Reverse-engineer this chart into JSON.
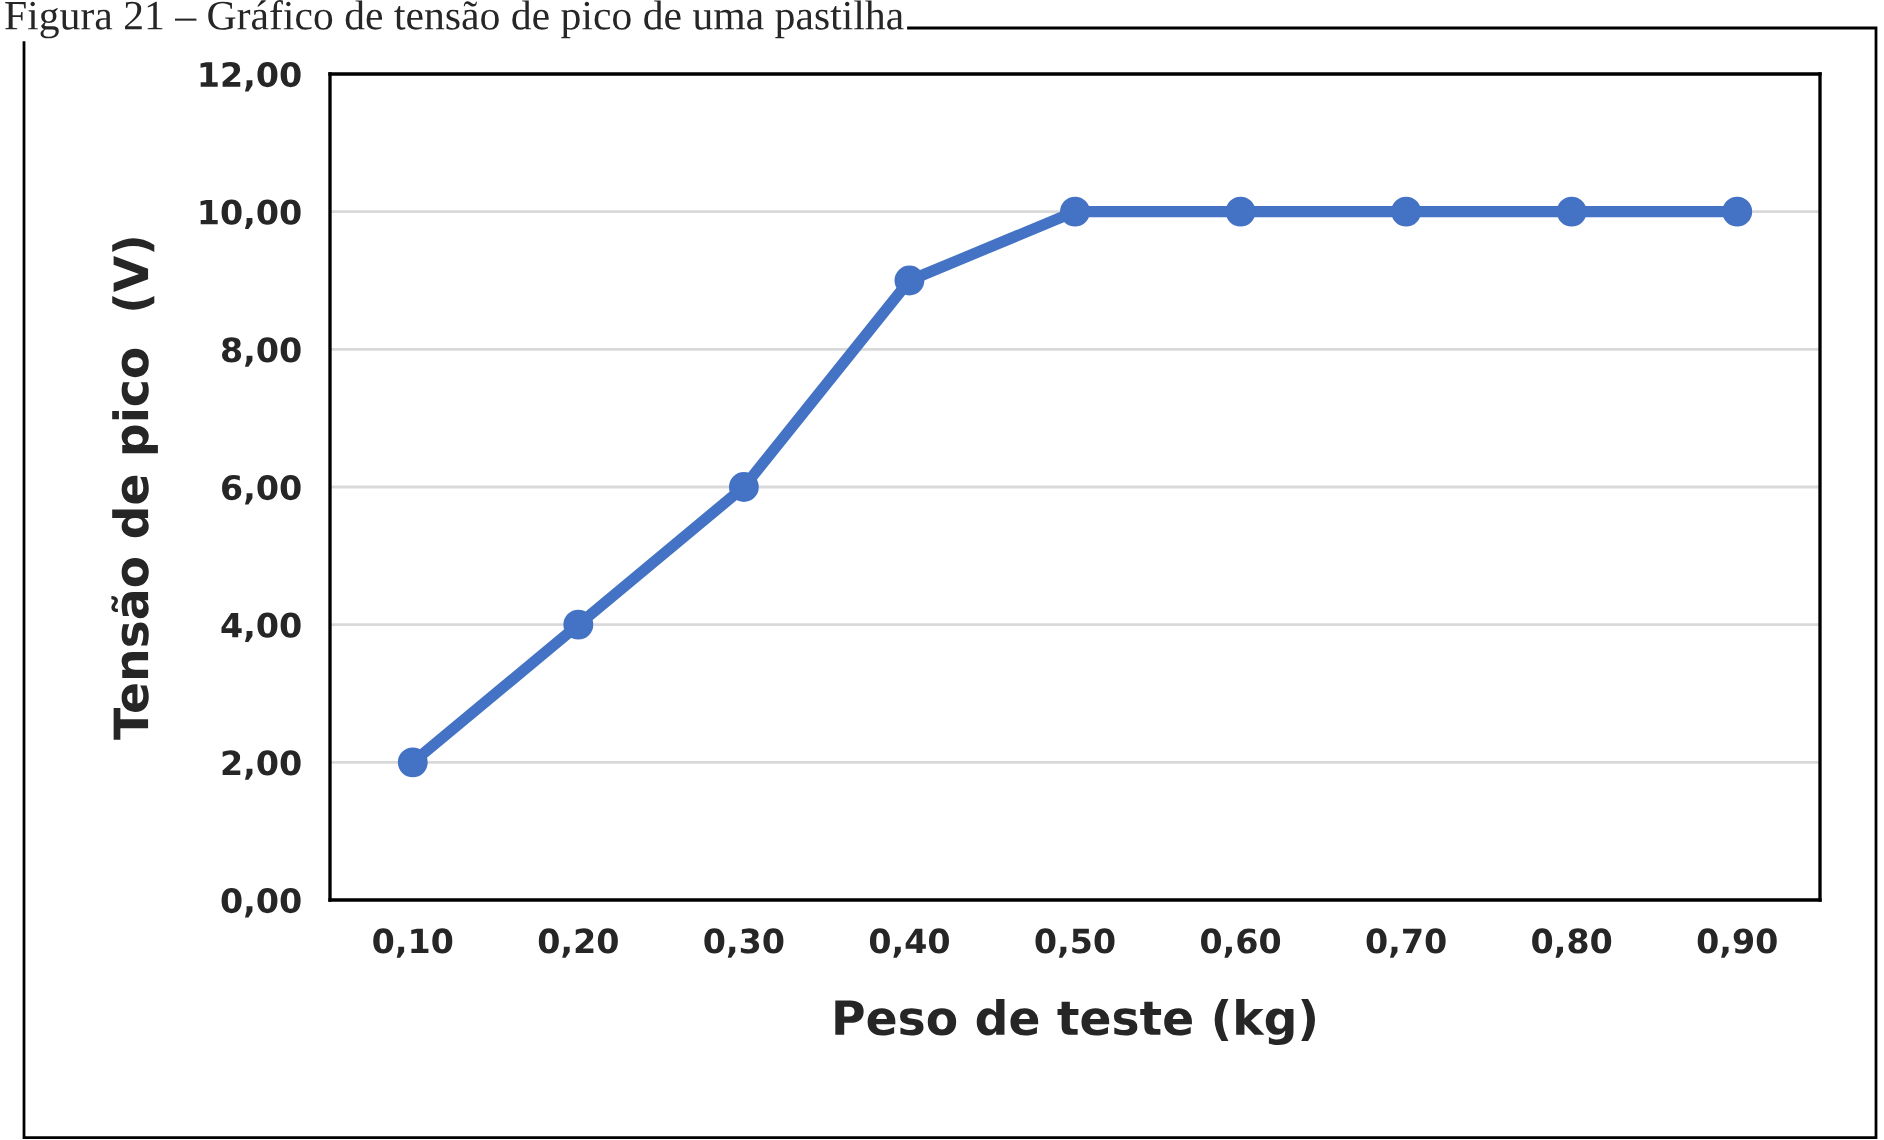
{
  "chart_data": {
    "type": "line",
    "title": "Figura 21 – Gráfico de tensão de pico de uma pastilha",
    "xlabel": "Peso de teste (kg)",
    "ylabel": "Tensão de pico  (V)",
    "categories": [
      "0,10",
      "0,20",
      "0,30",
      "0,40",
      "0,50",
      "0,60",
      "0,70",
      "0,80",
      "0,90"
    ],
    "series": [
      {
        "color": "#4472c4",
        "values": [
          2,
          4,
          6,
          9,
          10,
          10,
          10,
          10,
          10
        ]
      }
    ],
    "ylim": [
      0,
      12
    ],
    "yticks": [
      {
        "value": 0,
        "label": "0,00"
      },
      {
        "value": 2,
        "label": "2,00"
      },
      {
        "value": 4,
        "label": "4,00"
      },
      {
        "value": 6,
        "label": "6,00"
      },
      {
        "value": 8,
        "label": "8,00"
      },
      {
        "value": 10,
        "label": "10,00"
      },
      {
        "value": 12,
        "label": "12,00"
      }
    ],
    "grid": "y",
    "marker": "circle",
    "line_style": "solid"
  }
}
